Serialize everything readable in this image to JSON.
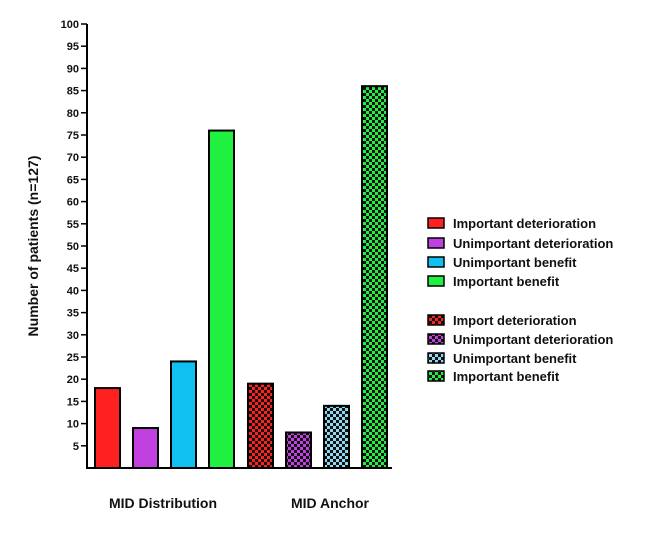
{
  "chart_data": {
    "type": "bar",
    "ylabel": "Number of patients (n=127)",
    "ylim": [
      0,
      100
    ],
    "ytick_step": 5,
    "grid": false,
    "legend_position": "right",
    "groups": [
      {
        "name": "MID Distribution",
        "pattern": "solid",
        "bars": [
          {
            "label": "Important deterioration",
            "value": 18,
            "color": "#ff2020"
          },
          {
            "label": "Unimportant deterioration",
            "value": 9,
            "color": "#c040e0"
          },
          {
            "label": "Unimportant benefit",
            "value": 24,
            "color": "#10c0f0"
          },
          {
            "label": "Important benefit",
            "value": 76,
            "color": "#20f040"
          }
        ]
      },
      {
        "name": "MID Anchor",
        "pattern": "checkered",
        "bars": [
          {
            "label": "Import deterioration",
            "value": 19,
            "color": "#ff2020"
          },
          {
            "label": "Unimportant deterioration",
            "value": 8,
            "color": "#c040e0"
          },
          {
            "label": "Unimportant benefit",
            "value": 14,
            "color": "#90d8f0"
          },
          {
            "label": "Important benefit",
            "value": 86,
            "color": "#20f040"
          }
        ]
      }
    ]
  }
}
